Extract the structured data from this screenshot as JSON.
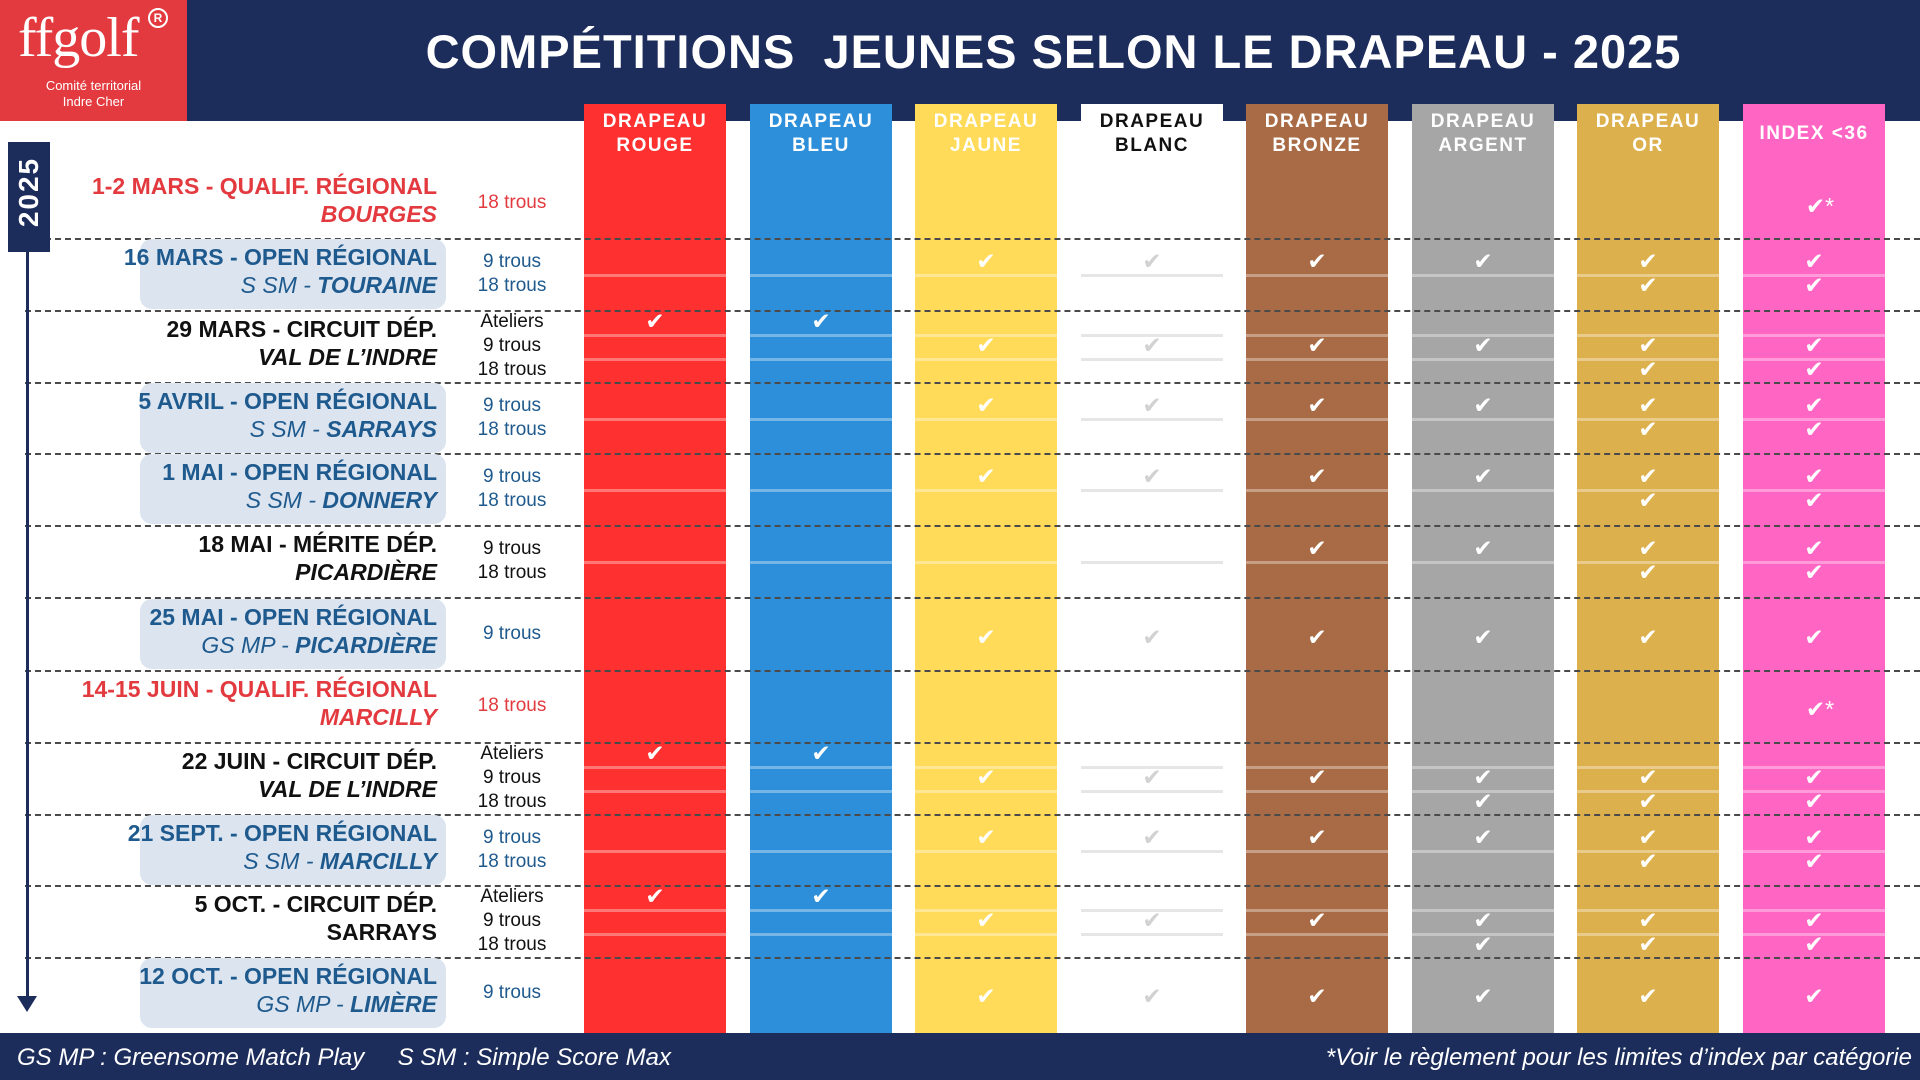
{
  "header": {
    "title": "COMPÉTITIONS  JEUNES SELON LE DRAPEAU - 2025",
    "logo_word": "ffgolf",
    "logo_reg": "R",
    "logo_sub1": "Comité territorial",
    "logo_sub2": "Indre Cher"
  },
  "year_label": "2025",
  "columns": [
    {
      "l1": "DRAPEAU",
      "l2": "ROUGE",
      "bg": "#ff3030",
      "fg": "#ffffff"
    },
    {
      "l1": "DRAPEAU",
      "l2": "BLEU",
      "bg": "#2d8fda",
      "fg": "#ffffff"
    },
    {
      "l1": "DRAPEAU",
      "l2": "JAUNE",
      "bg": "#ffdb59",
      "fg": "#ffffff"
    },
    {
      "l1": "DRAPEAU",
      "l2": "BLANC",
      "bg": "#ffffff",
      "fg": "#111111"
    },
    {
      "l1": "DRAPEAU",
      "l2": "BRONZE",
      "bg": "#a96b45",
      "fg": "#ffffff"
    },
    {
      "l1": "DRAPEAU",
      "l2": "ARGENT",
      "bg": "#a6a6a6",
      "fg": "#ffffff"
    },
    {
      "l1": "DRAPEAU",
      "l2": "OR",
      "bg": "#ddb04e",
      "fg": "#ffffff"
    },
    {
      "l1": "INDEX <36",
      "l2": "",
      "bg": "#ff66c4",
      "fg": "#ffffff"
    }
  ],
  "events": [
    {
      "l1": "1-2 MARS - QUALIF. RÉGIONAL",
      "pre": "",
      "place": "BOURGES",
      "style": "red",
      "formats": [
        "18 trous"
      ],
      "checks": [
        [],
        [],
        [],
        [],
        [],
        [],
        [],
        [
          "✔*"
        ]
      ]
    },
    {
      "l1": "16 MARS - OPEN RÉGIONAL",
      "pre": "S SM - ",
      "place": "TOURAINE",
      "style": "pill",
      "formats": [
        "9 trous",
        "18 trous"
      ],
      "checks": [
        [],
        [],
        [
          "✔"
        ],
        [
          "✔"
        ],
        [
          "✔"
        ],
        [
          "✔"
        ],
        [
          "✔",
          "✔"
        ],
        [
          "✔",
          "✔"
        ]
      ]
    },
    {
      "l1": "29 MARS - CIRCUIT DÉP.",
      "pre": "",
      "place": "VAL DE L’INDRE",
      "style": "plain",
      "formats": [
        "Ateliers",
        "9 trous",
        "18 trous"
      ],
      "checks": [
        [
          "✔"
        ],
        [
          "✔"
        ],
        [
          "",
          "✔"
        ],
        [
          "",
          "✔"
        ],
        [
          "",
          "✔"
        ],
        [
          "",
          "✔"
        ],
        [
          "",
          "✔",
          "✔"
        ],
        [
          "",
          "✔",
          "✔"
        ]
      ]
    },
    {
      "l1": "5 AVRIL - OPEN RÉGIONAL",
      "pre": "S SM - ",
      "place": "SARRAYS",
      "style": "pill",
      "formats": [
        "9 trous",
        "18 trous"
      ],
      "checks": [
        [],
        [],
        [
          "✔"
        ],
        [
          "✔"
        ],
        [
          "✔"
        ],
        [
          "✔"
        ],
        [
          "✔",
          "✔"
        ],
        [
          "✔",
          "✔"
        ]
      ]
    },
    {
      "l1": "1 MAI - OPEN RÉGIONAL",
      "pre": "S SM - ",
      "place": "DONNERY",
      "style": "pill",
      "formats": [
        "9 trous",
        "18 trous"
      ],
      "checks": [
        [],
        [],
        [
          "✔"
        ],
        [
          "✔"
        ],
        [
          "✔"
        ],
        [
          "✔"
        ],
        [
          "✔",
          "✔"
        ],
        [
          "✔",
          "✔"
        ]
      ]
    },
    {
      "l1": "18 MAI - MÉRITE DÉP.",
      "pre": "",
      "place": "PICARDIÈRE",
      "style": "plain",
      "formats": [
        "9 trous",
        "18 trous"
      ],
      "checks": [
        [],
        [],
        [],
        [],
        [
          "✔"
        ],
        [
          "✔"
        ],
        [
          "✔",
          "✔"
        ],
        [
          "✔",
          "✔"
        ]
      ]
    },
    {
      "l1": "25 MAI - OPEN RÉGIONAL",
      "pre": "GS MP - ",
      "place": "PICARDIÈRE",
      "style": "pill",
      "formats": [
        "9 trous"
      ],
      "checks": [
        [],
        [],
        [
          "✔"
        ],
        [
          "✔"
        ],
        [
          "✔"
        ],
        [
          "✔"
        ],
        [
          "✔"
        ],
        [
          "✔"
        ]
      ]
    },
    {
      "l1": "14-15 JUIN - QUALIF. RÉGIONAL",
      "pre": "",
      "place": "MARCILLY",
      "style": "red",
      "formats": [
        "18 trous"
      ],
      "checks": [
        [],
        [],
        [],
        [],
        [],
        [],
        [],
        [
          "✔*"
        ]
      ]
    },
    {
      "l1": "22 JUIN - CIRCUIT DÉP.",
      "pre": "",
      "place": "VAL DE L’INDRE",
      "style": "plain",
      "formats": [
        "Ateliers",
        "9 trous",
        "18 trous"
      ],
      "checks": [
        [
          "✔"
        ],
        [
          "✔"
        ],
        [
          "",
          "✔"
        ],
        [
          "",
          "✔"
        ],
        [
          "",
          "✔"
        ],
        [
          "",
          "✔",
          "✔"
        ],
        [
          "",
          "✔",
          "✔"
        ],
        [
          "",
          "✔",
          "✔"
        ]
      ]
    },
    {
      "l1": "21 SEPT. - OPEN RÉGIONAL",
      "pre": "S SM - ",
      "place": "MARCILLY",
      "style": "pill",
      "formats": [
        "9 trous",
        "18 trous"
      ],
      "checks": [
        [],
        [],
        [
          "✔"
        ],
        [
          "✔"
        ],
        [
          "✔"
        ],
        [
          "✔"
        ],
        [
          "✔",
          "✔"
        ],
        [
          "✔",
          "✔"
        ]
      ]
    },
    {
      "l1": "5 OCT. - CIRCUIT DÉP.",
      "pre": "",
      "place": "SARRAYS",
      "style": "plain",
      "formats": [
        "Ateliers",
        "9 trous",
        "18 trous"
      ],
      "checks": [
        [
          "✔"
        ],
        [
          "✔"
        ],
        [
          "",
          "✔"
        ],
        [
          "",
          "✔"
        ],
        [
          "",
          "✔"
        ],
        [
          "",
          "✔",
          "✔"
        ],
        [
          "",
          "✔",
          "✔"
        ],
        [
          "",
          "✔",
          "✔"
        ]
      ]
    },
    {
      "l1": "12 OCT. - OPEN RÉGIONAL",
      "pre": "GS MP - ",
      "place": "LIMÈRE",
      "style": "pill",
      "formats": [
        "9 trous"
      ],
      "checks": [
        [],
        [],
        [
          "✔"
        ],
        [
          "✔"
        ],
        [
          "✔"
        ],
        [
          "✔"
        ],
        [
          "✔"
        ],
        [
          "✔"
        ]
      ]
    }
  ],
  "colors": {
    "navy": "#1c2c5b",
    "red_text": "#e23a3f",
    "pill_text": "#1f5a8e",
    "check_white": "#ffffff",
    "check_on_white": "#d2d2d2"
  },
  "footer": {
    "left": "GS MP : Greensome Match Play     S SM : Simple Score Max",
    "right": "*Voir le règlement pour les limites d’index par catégorie"
  }
}
